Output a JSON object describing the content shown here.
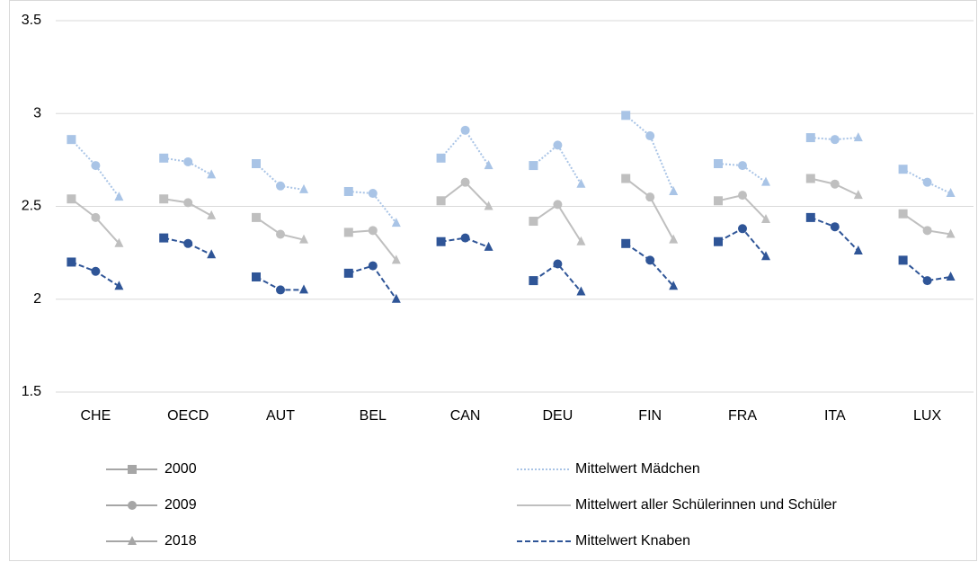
{
  "chart_data": {
    "type": "line",
    "categories": [
      "CHE",
      "OECD",
      "AUT",
      "BEL",
      "CAN",
      "DEU",
      "FIN",
      "FRA",
      "ITA",
      "LUX"
    ],
    "years": [
      {
        "name": "2000",
        "marker": "square"
      },
      {
        "name": "2009",
        "marker": "circle"
      },
      {
        "name": "2018",
        "marker": "triangle"
      }
    ],
    "year_color": "#a6a6a6",
    "series": [
      {
        "name": "Mittelwert Mädchen",
        "color": "#a9c4e6",
        "style": "dotted",
        "values": [
          [
            2.86,
            2.72,
            2.55
          ],
          [
            2.76,
            2.74,
            2.67
          ],
          [
            2.73,
            2.61,
            2.59
          ],
          [
            2.58,
            2.57,
            2.41
          ],
          [
            2.76,
            2.91,
            2.72
          ],
          [
            2.72,
            2.83,
            2.62
          ],
          [
            2.99,
            2.88,
            2.58
          ],
          [
            2.73,
            2.72,
            2.63
          ],
          [
            2.87,
            2.86,
            2.87
          ],
          [
            2.7,
            2.63,
            2.57
          ]
        ]
      },
      {
        "name": "Mittelwert aller Schülerinnen und Schüler",
        "color": "#bfbfbf",
        "style": "solid",
        "values": [
          [
            2.54,
            2.44,
            2.3
          ],
          [
            2.54,
            2.52,
            2.45
          ],
          [
            2.44,
            2.35,
            2.32
          ],
          [
            2.36,
            2.37,
            2.21
          ],
          [
            2.53,
            2.63,
            2.5
          ],
          [
            2.42,
            2.51,
            2.31
          ],
          [
            2.65,
            2.55,
            2.32
          ],
          [
            2.53,
            2.56,
            2.43
          ],
          [
            2.65,
            2.62,
            2.56
          ],
          [
            2.46,
            2.37,
            2.35
          ]
        ]
      },
      {
        "name": "Mittelwert Knaben",
        "color": "#2f5597",
        "style": "dashed",
        "values": [
          [
            2.2,
            2.15,
            2.07
          ],
          [
            2.33,
            2.3,
            2.24
          ],
          [
            2.12,
            2.05,
            2.05
          ],
          [
            2.14,
            2.18,
            2.0
          ],
          [
            2.31,
            2.33,
            2.28
          ],
          [
            2.1,
            2.19,
            2.04
          ],
          [
            2.3,
            2.21,
            2.07
          ],
          [
            2.31,
            2.38,
            2.23
          ],
          [
            2.44,
            2.39,
            2.26
          ],
          [
            2.21,
            2.1,
            2.12
          ]
        ]
      }
    ],
    "ylim": [
      1.5,
      3.5
    ],
    "yticks": [
      1.5,
      2,
      2.5,
      3,
      3.5
    ],
    "grid": true
  }
}
